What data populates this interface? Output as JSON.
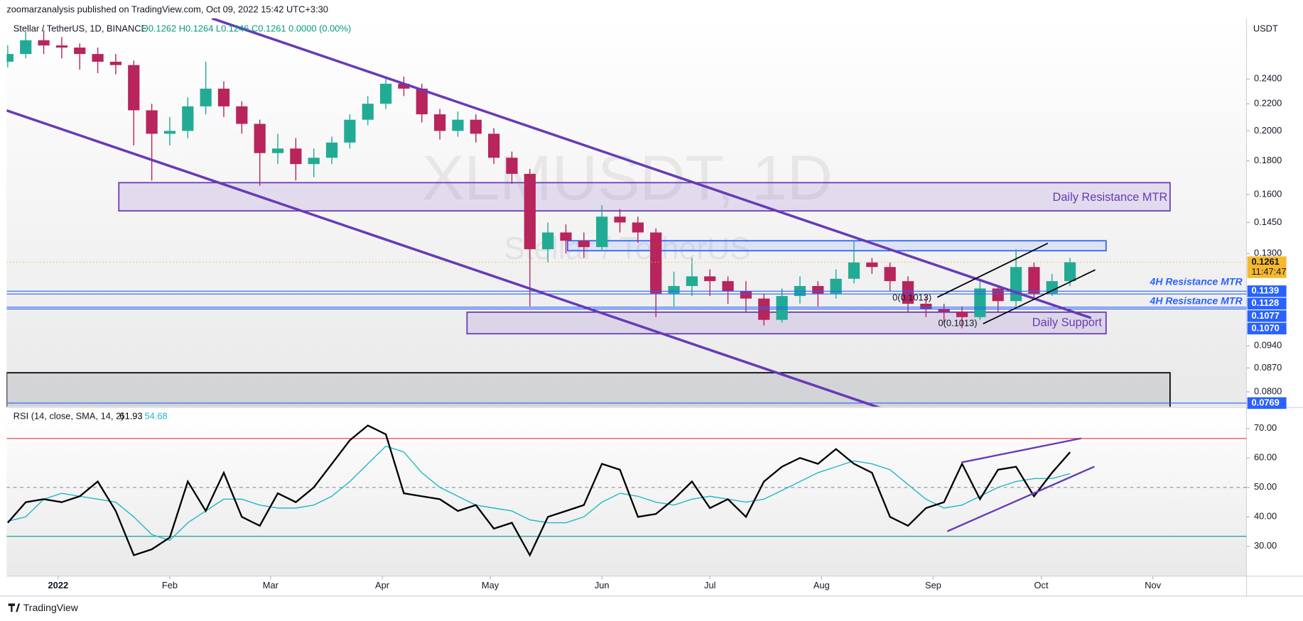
{
  "header": "zoomarzanalysis published on TradingView.com, Oct 09, 2022 15:42 UTC+3:30",
  "footer": "TradingView",
  "chart_data": [
    {
      "type": "candlestick",
      "title": "Stellar / TetherUS, 1D, BINANCE",
      "ohlc_legend": "O0.1262 H0.1264 L0.1246 C0.1261 0.0000 (0.00%)",
      "watermark": "XLMUSDT, 1D",
      "watermark_subtitle": "Stellar / TetherUS",
      "axis_unit": "USDT",
      "log_scale": true,
      "up_color": "#22ab94",
      "down_color": "#b8245c",
      "x": [
        -14,
        -9,
        -4,
        1,
        6,
        11,
        16,
        21,
        26,
        31,
        36,
        41,
        46,
        51,
        56,
        61,
        66,
        71,
        76,
        81,
        86,
        91,
        96,
        101,
        106,
        111,
        116,
        121,
        126,
        131,
        136,
        141,
        146,
        151,
        156,
        161,
        166,
        171,
        176,
        181,
        186,
        191,
        196,
        201,
        206,
        211,
        216,
        221,
        226,
        231,
        236,
        241,
        246,
        251,
        256,
        261,
        266,
        271,
        276,
        281
      ],
      "xlim": [
        -14.3,
        330
      ],
      "ohlc": [
        [
          0.255,
          0.27,
          0.25,
          0.262
        ],
        [
          0.262,
          0.283,
          0.258,
          0.275
        ],
        [
          0.275,
          0.285,
          0.262,
          0.27
        ],
        [
          0.27,
          0.278,
          0.258,
          0.268
        ],
        [
          0.268,
          0.272,
          0.248,
          0.262
        ],
        [
          0.262,
          0.268,
          0.245,
          0.255
        ],
        [
          0.255,
          0.262,
          0.244,
          0.252
        ],
        [
          0.252,
          0.256,
          0.19,
          0.215
        ],
        [
          0.215,
          0.22,
          0.168,
          0.198
        ],
        [
          0.198,
          0.21,
          0.19,
          0.2
        ],
        [
          0.2,
          0.225,
          0.195,
          0.218
        ],
        [
          0.218,
          0.255,
          0.212,
          0.232
        ],
        [
          0.232,
          0.238,
          0.21,
          0.218
        ],
        [
          0.218,
          0.222,
          0.198,
          0.205
        ],
        [
          0.205,
          0.208,
          0.165,
          0.185
        ],
        [
          0.185,
          0.198,
          0.178,
          0.188
        ],
        [
          0.188,
          0.195,
          0.168,
          0.178
        ],
        [
          0.178,
          0.188,
          0.17,
          0.182
        ],
        [
          0.182,
          0.196,
          0.178,
          0.192
        ],
        [
          0.192,
          0.212,
          0.188,
          0.208
        ],
        [
          0.208,
          0.226,
          0.204,
          0.22
        ],
        [
          0.22,
          0.242,
          0.216,
          0.236
        ],
        [
          0.236,
          0.242,
          0.226,
          0.232
        ],
        [
          0.232,
          0.236,
          0.206,
          0.212
        ],
        [
          0.212,
          0.216,
          0.194,
          0.2
        ],
        [
          0.2,
          0.214,
          0.196,
          0.208
        ],
        [
          0.208,
          0.212,
          0.192,
          0.198
        ],
        [
          0.198,
          0.202,
          0.178,
          0.182
        ],
        [
          0.182,
          0.186,
          0.166,
          0.172
        ],
        [
          0.172,
          0.175,
          0.108,
          0.132
        ],
        [
          0.132,
          0.145,
          0.126,
          0.14
        ],
        [
          0.14,
          0.144,
          0.13,
          0.136
        ],
        [
          0.136,
          0.14,
          0.128,
          0.133
        ],
        [
          0.133,
          0.154,
          0.131,
          0.148
        ],
        [
          0.148,
          0.152,
          0.14,
          0.145
        ],
        [
          0.145,
          0.148,
          0.135,
          0.14
        ],
        [
          0.14,
          0.142,
          0.104,
          0.113
        ],
        [
          0.113,
          0.122,
          0.108,
          0.116
        ],
        [
          0.116,
          0.128,
          0.112,
          0.12
        ],
        [
          0.12,
          0.123,
          0.112,
          0.118
        ],
        [
          0.118,
          0.12,
          0.109,
          0.114
        ],
        [
          0.114,
          0.118,
          0.106,
          0.111
        ],
        [
          0.111,
          0.113,
          0.101,
          0.103
        ],
        [
          0.103,
          0.115,
          0.102,
          0.112
        ],
        [
          0.112,
          0.12,
          0.109,
          0.116
        ],
        [
          0.116,
          0.118,
          0.108,
          0.113
        ],
        [
          0.113,
          0.123,
          0.111,
          0.119
        ],
        [
          0.119,
          0.136,
          0.117,
          0.126
        ],
        [
          0.126,
          0.128,
          0.121,
          0.124
        ],
        [
          0.124,
          0.126,
          0.114,
          0.118
        ],
        [
          0.118,
          0.12,
          0.106,
          0.109
        ],
        [
          0.109,
          0.112,
          0.104,
          0.107
        ],
        [
          0.107,
          0.109,
          0.102,
          0.106
        ],
        [
          0.106,
          0.108,
          0.1,
          0.104
        ],
        [
          0.104,
          0.118,
          0.103,
          0.115
        ],
        [
          0.115,
          0.116,
          0.106,
          0.11
        ],
        [
          0.11,
          0.132,
          0.108,
          0.124
        ],
        [
          0.124,
          0.126,
          0.111,
          0.113
        ],
        [
          0.113,
          0.121,
          0.112,
          0.118
        ],
        [
          0.118,
          0.128,
          0.116,
          0.1261
        ]
      ],
      "ylim": [
        0.0759,
        0.297
      ],
      "yticks": [
        {
          "value": 0.24,
          "label": "0.2400"
        },
        {
          "value": 0.22,
          "label": "0.2200"
        },
        {
          "value": 0.2,
          "label": "0.2000"
        },
        {
          "value": 0.18,
          "label": "0.1800"
        },
        {
          "value": 0.16,
          "label": "0.1600"
        },
        {
          "value": 0.145,
          "label": "0.1450"
        },
        {
          "value": 0.13,
          "label": "0.1300"
        },
        {
          "value": 0.094,
          "label": "0.0940"
        },
        {
          "value": 0.087,
          "label": "0.0870"
        },
        {
          "value": 0.08,
          "label": "0.0800"
        }
      ],
      "price_labels": [
        {
          "value": 0.1261,
          "color": "#f5b82e"
        },
        {
          "value": 0.1139,
          "color": "#2962ff"
        },
        {
          "value": 0.1128,
          "color": "#2962ff"
        },
        {
          "value": 0.1077,
          "color": "#2962ff"
        },
        {
          "value": 0.107,
          "label": "0.1070",
          "color": "#2962ff"
        },
        {
          "value": 0.0769,
          "color": "#2962ff"
        }
      ],
      "countdown": "11:47:47",
      "annotations": [
        "Daily Resistance MTR",
        "4H Resistance MTR",
        "4H Resistance MTR",
        "Daily Support",
        "0(0.1013)",
        "0(0.1013)"
      ]
    },
    {
      "type": "line",
      "title": "RSI (14, close, SMA, 14, 2)",
      "x": [
        -14,
        -9,
        -4,
        1,
        6,
        11,
        16,
        21,
        26,
        31,
        36,
        41,
        46,
        51,
        56,
        61,
        66,
        71,
        76,
        81,
        86,
        91,
        96,
        101,
        106,
        111,
        116,
        121,
        126,
        131,
        136,
        141,
        146,
        151,
        156,
        161,
        166,
        171,
        176,
        181,
        186,
        191,
        196,
        201,
        206,
        211,
        216,
        221,
        226,
        231,
        236,
        241,
        246,
        251,
        256,
        261,
        266,
        271,
        276,
        281
      ],
      "xlim": [
        -14.3,
        330
      ],
      "xticks": [
        {
          "value": 0,
          "label": "2022"
        },
        {
          "value": 31,
          "label": "Feb"
        },
        {
          "value": 59,
          "label": "Mar"
        },
        {
          "value": 90,
          "label": "Apr"
        },
        {
          "value": 120,
          "label": "May"
        },
        {
          "value": 151,
          "label": "Jun"
        },
        {
          "value": 181,
          "label": "Jul"
        },
        {
          "value": 212,
          "label": "Aug"
        },
        {
          "value": 243,
          "label": "Sep"
        },
        {
          "value": 273,
          "label": "Oct"
        },
        {
          "value": 304,
          "label": "Nov"
        }
      ],
      "ylim": [
        19.9,
        76.5
      ],
      "yticks": [
        {
          "value": 30,
          "label": "30.00"
        },
        {
          "value": 40,
          "label": "40.00"
        },
        {
          "value": 50,
          "label": "50.00"
        },
        {
          "value": 60,
          "label": "60.00"
        },
        {
          "value": 70,
          "label": "70.00"
        }
      ],
      "bands": [
        66.6,
        33.4
      ],
      "band_colors": [
        "#f23645",
        "#089981"
      ],
      "mid_line": 50,
      "series": [
        {
          "color": "#000000",
          "values": [
            38,
            45,
            46,
            45,
            47,
            52,
            42,
            27,
            29,
            33,
            52,
            42,
            55,
            40,
            37,
            48,
            45,
            50,
            58,
            66,
            71,
            68,
            48,
            47,
            46,
            42,
            44,
            36,
            38,
            27,
            40,
            42,
            44,
            58,
            56,
            40,
            41,
            46,
            52,
            43,
            46,
            40,
            52,
            57,
            60,
            58,
            63,
            58,
            55,
            40,
            37,
            43,
            45,
            58,
            46,
            56,
            57,
            47,
            55,
            61.93
          ]
        },
        {
          "color": "#22b6c8",
          "values": [
            38.5,
            40,
            46,
            48,
            47,
            46,
            45,
            40,
            34,
            32,
            38,
            42,
            46,
            46,
            44,
            43,
            43,
            44,
            47,
            52,
            58,
            64,
            62,
            55,
            50,
            47,
            44,
            43,
            42,
            39,
            38,
            38,
            40,
            45,
            48,
            47,
            45,
            44,
            46,
            47,
            46,
            45,
            46,
            49,
            52,
            55,
            57,
            59,
            58,
            56,
            51,
            46,
            43,
            44,
            47,
            50,
            52,
            53,
            53,
            54.68
          ]
        }
      ]
    }
  ]
}
